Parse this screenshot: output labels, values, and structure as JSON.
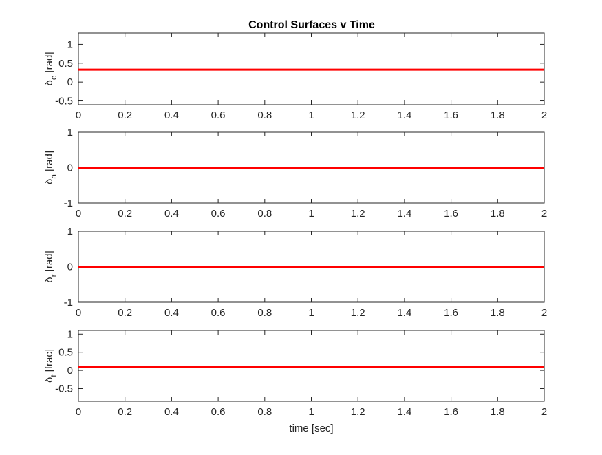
{
  "figure": {
    "title": "Control Surfaces v Time",
    "xlabel": "time [sec]"
  },
  "chart_data": [
    {
      "type": "line",
      "title": "Control Surfaces v Time",
      "ylabel": {
        "symbol": "δ",
        "sub": "e",
        "unit": "[rad]"
      },
      "xlabel": "",
      "xlim": [
        0,
        2
      ],
      "ylim": [
        -0.6,
        1.3
      ],
      "xticks": [
        0,
        0.2,
        0.4,
        0.6,
        0.8,
        1,
        1.2,
        1.4,
        1.6,
        1.8,
        2
      ],
      "xtick_labels": [
        "0",
        "0.2",
        "0.4",
        "0.6",
        "0.8",
        "1",
        "1.2",
        "1.4",
        "1.6",
        "1.8",
        "2"
      ],
      "yticks": [
        -0.5,
        0,
        0.5,
        1
      ],
      "ytick_labels": [
        "-0.5",
        "0",
        "0.5",
        "1"
      ],
      "grid": false,
      "series": [
        {
          "x": [
            0,
            2
          ],
          "values": [
            0.33,
            0.33
          ],
          "color": "#ff0000"
        }
      ]
    },
    {
      "type": "line",
      "ylabel": {
        "symbol": "δ",
        "sub": "a",
        "unit": "[rad]"
      },
      "xlabel": "",
      "xlim": [
        0,
        2
      ],
      "ylim": [
        -1,
        1
      ],
      "xticks": [
        0,
        0.2,
        0.4,
        0.6,
        0.8,
        1,
        1.2,
        1.4,
        1.6,
        1.8,
        2
      ],
      "xtick_labels": [
        "0",
        "0.2",
        "0.4",
        "0.6",
        "0.8",
        "1",
        "1.2",
        "1.4",
        "1.6",
        "1.8",
        "2"
      ],
      "yticks": [
        -1,
        0,
        1
      ],
      "ytick_labels": [
        "-1",
        "0",
        "1"
      ],
      "grid": false,
      "series": [
        {
          "x": [
            0,
            2
          ],
          "values": [
            0,
            0
          ],
          "color": "#ff0000"
        }
      ]
    },
    {
      "type": "line",
      "ylabel": {
        "symbol": "δ",
        "sub": "r",
        "unit": "[rad]"
      },
      "xlabel": "",
      "xlim": [
        0,
        2
      ],
      "ylim": [
        -1,
        1
      ],
      "xticks": [
        0,
        0.2,
        0.4,
        0.6,
        0.8,
        1,
        1.2,
        1.4,
        1.6,
        1.8,
        2
      ],
      "xtick_labels": [
        "0",
        "0.2",
        "0.4",
        "0.6",
        "0.8",
        "1",
        "1.2",
        "1.4",
        "1.6",
        "1.8",
        "2"
      ],
      "yticks": [
        -1,
        0,
        1
      ],
      "ytick_labels": [
        "-1",
        "0",
        "1"
      ],
      "grid": false,
      "series": [
        {
          "x": [
            0,
            2
          ],
          "values": [
            0,
            0
          ],
          "color": "#ff0000"
        }
      ]
    },
    {
      "type": "line",
      "ylabel": {
        "symbol": "δ",
        "sub": "t",
        "unit": "[frac]"
      },
      "xlabel": "time [sec]",
      "xlim": [
        0,
        2
      ],
      "ylim": [
        -0.85,
        1.1
      ],
      "xticks": [
        0,
        0.2,
        0.4,
        0.6,
        0.8,
        1,
        1.2,
        1.4,
        1.6,
        1.8,
        2
      ],
      "xtick_labels": [
        "0",
        "0.2",
        "0.4",
        "0.6",
        "0.8",
        "1",
        "1.2",
        "1.4",
        "1.6",
        "1.8",
        "2"
      ],
      "yticks": [
        -0.5,
        0,
        0.5,
        1
      ],
      "ytick_labels": [
        "-0.5",
        "0",
        "0.5",
        "1"
      ],
      "grid": false,
      "series": [
        {
          "x": [
            0,
            2
          ],
          "values": [
            0.1,
            0.1
          ],
          "color": "#ff0000"
        }
      ]
    }
  ]
}
